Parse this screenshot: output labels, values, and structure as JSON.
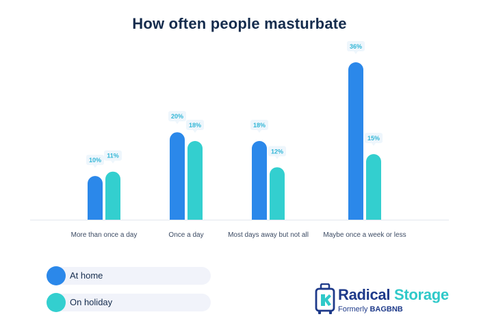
{
  "chart_data": {
    "type": "bar",
    "title": "How often people masturbate",
    "categories": [
      "More than once a day",
      "Once a day",
      "Most days away but not all",
      "Maybe once a week or less"
    ],
    "series": [
      {
        "name": "At home",
        "values": [
          10,
          20,
          18,
          36
        ],
        "labels": [
          "10%",
          "20%",
          "18%",
          "36%"
        ],
        "color": "#2b88ea"
      },
      {
        "name": "On holiday",
        "values": [
          11,
          18,
          12,
          15
        ],
        "labels": [
          "11%",
          "18%",
          "12%",
          "15%"
        ],
        "color": "#33cfcf"
      }
    ],
    "ylim": [
      0,
      36
    ],
    "grid": false,
    "legend": "bottom-left"
  },
  "brand": {
    "name_part1": "Radical",
    "name_part2": "Storage",
    "formerly_prefix": "Formerly",
    "formerly_name": "BAGBNB",
    "primary_color": "#1e3a8a",
    "accent_color": "#2fc9c9"
  },
  "colors": {
    "label_badge_bg": "#eef6fc",
    "label_text": "#33b6d6",
    "axis": "#e3e6ee"
  }
}
